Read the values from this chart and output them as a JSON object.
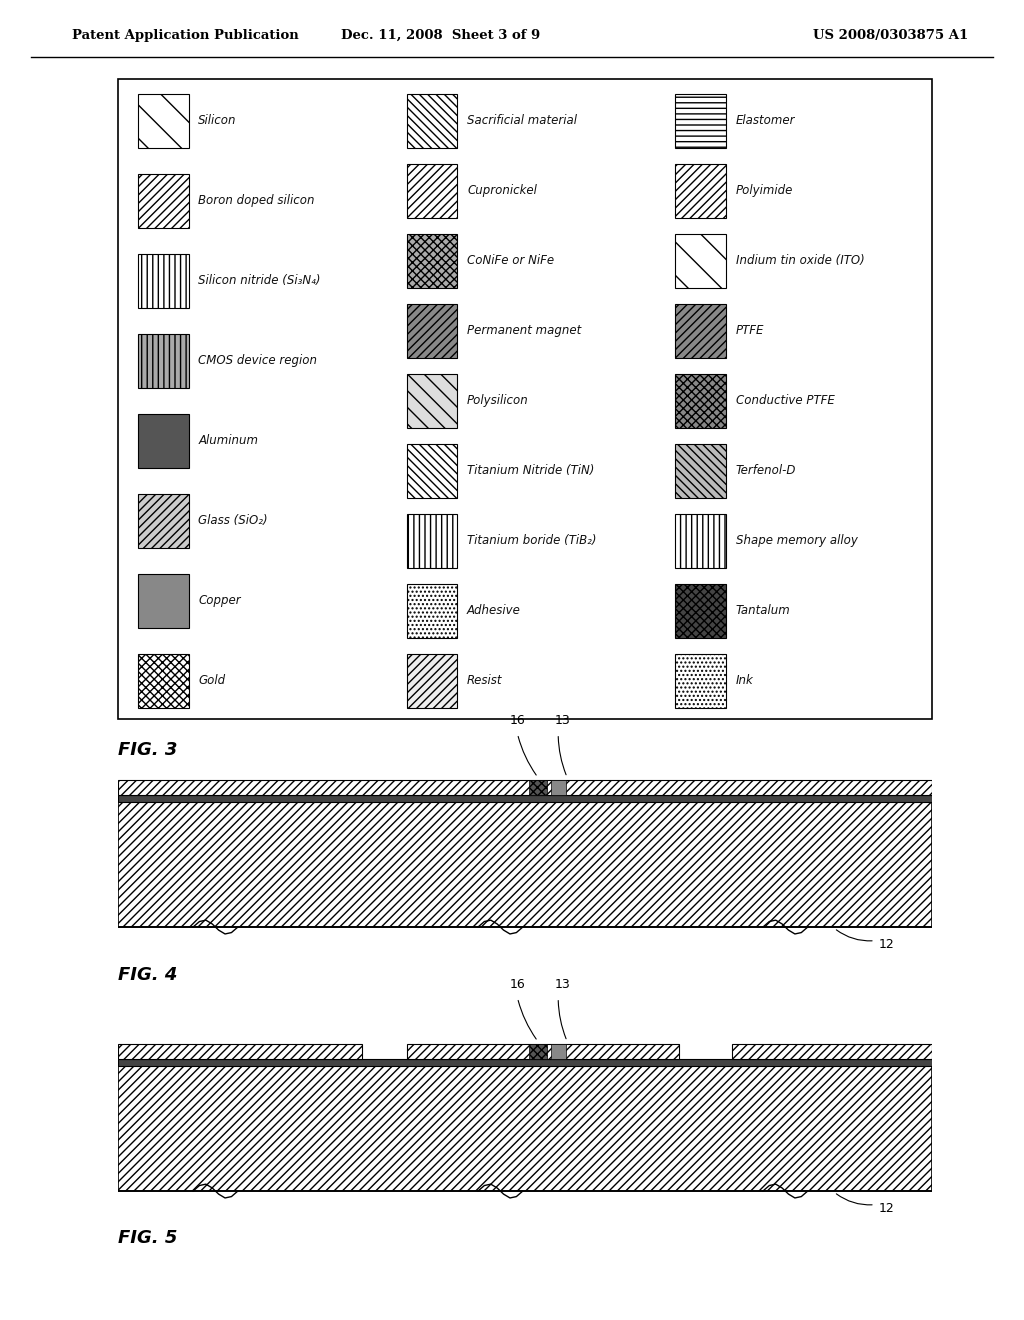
{
  "header_left": "Patent Application Publication",
  "header_mid": "Dec. 11, 2008  Sheet 3 of 9",
  "header_right": "US 2008/0303875 A1",
  "legend_items_col0": [
    {
      "row": 0,
      "label": "Silicon",
      "hatch": "\\",
      "fc": "white",
      "ec": "black"
    },
    {
      "row": 1,
      "label": "Boron doped silicon",
      "hatch": "////",
      "fc": "white",
      "ec": "black"
    },
    {
      "row": 2,
      "label": "Silicon nitride (Si₃N₄)",
      "hatch": "|||",
      "fc": "white",
      "ec": "black"
    },
    {
      "row": 3,
      "label": "CMOS device region",
      "hatch": "|||",
      "fc": "#aaaaaa",
      "ec": "black"
    },
    {
      "row": 4,
      "label": "Aluminum",
      "hatch": "",
      "fc": "#555555",
      "ec": "black"
    },
    {
      "row": 5,
      "label": "Glass (SiO₂)",
      "hatch": "////",
      "fc": "#cccccc",
      "ec": "black"
    },
    {
      "row": 6,
      "label": "Copper",
      "hatch": "",
      "fc": "#888888",
      "ec": "black"
    },
    {
      "row": 7,
      "label": "Gold",
      "hatch": "xxxx",
      "fc": "white",
      "ec": "black"
    }
  ],
  "legend_items_col1": [
    {
      "row": 0,
      "label": "Sacrificial material",
      "hatch": "\\\\\\\\",
      "fc": "white",
      "ec": "black"
    },
    {
      "row": 1,
      "label": "Cupronickel",
      "hatch": "////",
      "fc": "white",
      "ec": "black"
    },
    {
      "row": 2,
      "label": "CoNiFe or NiFe",
      "hatch": "xxxx",
      "fc": "#aaaaaa",
      "ec": "black"
    },
    {
      "row": 3,
      "label": "Permanent magnet",
      "hatch": "////",
      "fc": "#888888",
      "ec": "black"
    },
    {
      "row": 4,
      "label": "Polysilicon",
      "hatch": "\\\\",
      "fc": "#dddddd",
      "ec": "black"
    },
    {
      "row": 5,
      "label": "Titanium Nitride (TiN)",
      "hatch": "\\\\\\\\",
      "fc": "white",
      "ec": "black"
    },
    {
      "row": 6,
      "label": "Titanium boride (TiB₂)",
      "hatch": "|||",
      "fc": "white",
      "ec": "black"
    },
    {
      "row": 7,
      "label": "Adhesive",
      "hatch": "....",
      "fc": "white",
      "ec": "black"
    },
    {
      "row": 8,
      "label": "Resist",
      "hatch": "////",
      "fc": "#eeeeee",
      "ec": "black"
    }
  ],
  "legend_items_col2": [
    {
      "row": 0,
      "label": "Elastomer",
      "hatch": "---",
      "fc": "white",
      "ec": "black"
    },
    {
      "row": 1,
      "label": "Polyimide",
      "hatch": "////",
      "fc": "white",
      "ec": "black"
    },
    {
      "row": 2,
      "label": "Indium tin oxide (ITO)",
      "hatch": "\\",
      "fc": "white",
      "ec": "black"
    },
    {
      "row": 3,
      "label": "PTFE",
      "hatch": "////",
      "fc": "#888888",
      "ec": "black"
    },
    {
      "row": 4,
      "label": "Conductive PTFE",
      "hatch": "xxxx",
      "fc": "#888888",
      "ec": "black"
    },
    {
      "row": 5,
      "label": "Terfenol-D",
      "hatch": "\\\\\\\\",
      "fc": "#bbbbbb",
      "ec": "black"
    },
    {
      "row": 6,
      "label": "Shape memory alloy",
      "hatch": "|||",
      "fc": "white",
      "ec": "black"
    },
    {
      "row": 7,
      "label": "Tantalum",
      "hatch": "xxxx",
      "fc": "#444444",
      "ec": "black"
    },
    {
      "row": 8,
      "label": "Ink",
      "hatch": "....",
      "fc": "white",
      "ec": "black"
    }
  ],
  "fig3_label": "FIG. 3",
  "fig4_label": "FIG. 4",
  "fig5_label": "FIG. 5"
}
